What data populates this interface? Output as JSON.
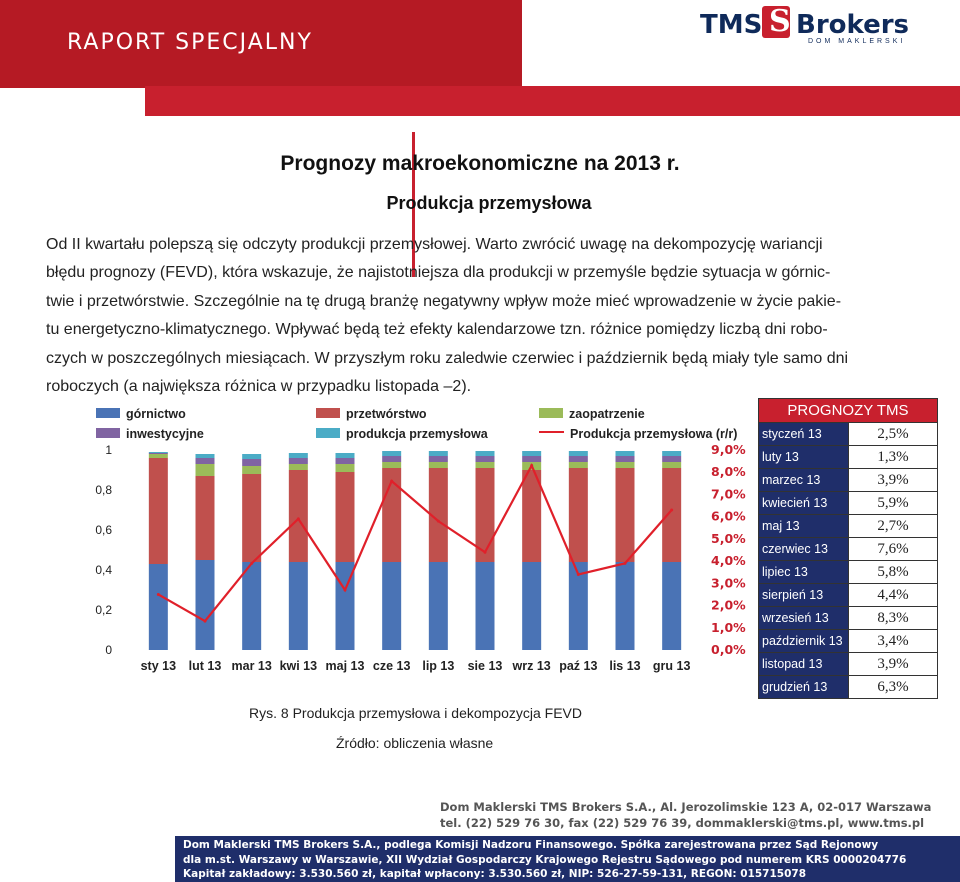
{
  "header": {
    "title": "RAPORT SPECJALNY",
    "logo_name": "TMS Brokers",
    "logo_tms": "TMS",
    "logo_brokers": "Brokers",
    "logo_sub": "DOM MAKLERSKI"
  },
  "article": {
    "heading": "Prognozy makroekonomiczne na 2013 r.",
    "subheading": "Produkcja przemysłowa",
    "paragraph_lines": [
      "Od II kwartału polepszą się odczyty produkcji przemysłowej. Warto zwrócić uwagę na dekompozycję wariancji",
      "błędu prognozy (FEVD), która wskazuje, że najistotniejsza dla produkcji w przemyśle będzie sytuacja w górnic-",
      "twie i przetwórstwie. Szczególnie na tę drugą branżę negatywny wpływ może mieć wprowadzenie w życie pakie-",
      "tu energetyczno-klimatycznego. Wpływać będą też efekty kalendarzowe tzn. różnice pomiędzy liczbą dni robo-",
      "czych w poszczególnych miesiącach. W przyszłym roku zaledwie czerwiec i październik będą miały tyle samo dni",
      "roboczych (a największa różnica w przypadku listopada –2)."
    ]
  },
  "chart_data": {
    "type": "bar",
    "stacked": true,
    "categories": [
      "sty 13",
      "lut 13",
      "mar 13",
      "kwi 13",
      "maj 13",
      "cze 13",
      "lip 13",
      "sie 13",
      "wrz 13",
      "paź 13",
      "lis 13",
      "gru 13"
    ],
    "ylim": [
      0,
      1
    ],
    "y_ticks": [
      "0",
      "0,2",
      "0,4",
      "0,6",
      "0,8",
      "1"
    ],
    "y2lim": [
      0,
      9
    ],
    "y2_ticks": [
      "0,0%",
      "1,0%",
      "2,0%",
      "3,0%",
      "4,0%",
      "5,0%",
      "6,0%",
      "7,0%",
      "8,0%",
      "9,0%"
    ],
    "legend_position": "top",
    "series": [
      {
        "name": "górnictwo",
        "color": "#4a73b5",
        "values": [
          0.43,
          0.45,
          0.44,
          0.44,
          0.44,
          0.44,
          0.44,
          0.44,
          0.44,
          0.44,
          0.44,
          0.44
        ]
      },
      {
        "name": "przetwórstwo",
        "color": "#c0504d",
        "values": [
          0.53,
          0.42,
          0.44,
          0.46,
          0.45,
          0.47,
          0.47,
          0.47,
          0.46,
          0.47,
          0.47,
          0.47
        ]
      },
      {
        "name": "zaopatrzenie",
        "color": "#9bbb59",
        "values": [
          0.02,
          0.06,
          0.04,
          0.03,
          0.04,
          0.03,
          0.03,
          0.03,
          0.04,
          0.03,
          0.03,
          0.03
        ]
      },
      {
        "name": "inwestycyjne",
        "color": "#8064a2",
        "values": [
          0.005,
          0.03,
          0.035,
          0.03,
          0.03,
          0.03,
          0.03,
          0.03,
          0.03,
          0.03,
          0.03,
          0.03
        ]
      },
      {
        "name": "produkcja przemysłowa",
        "color": "#4bacc6",
        "values": [
          0.005,
          0.02,
          0.025,
          0.025,
          0.025,
          0.025,
          0.025,
          0.025,
          0.025,
          0.025,
          0.025,
          0.025
        ]
      }
    ],
    "line": {
      "name": "Produkcja przemysłowa (r/r)",
      "color": "#e0202a",
      "axis": "right",
      "values": [
        2.5,
        1.3,
        3.9,
        5.9,
        2.7,
        7.6,
        5.8,
        4.4,
        8.3,
        3.4,
        3.9,
        6.3
      ]
    }
  },
  "forecast_table": {
    "title": "PROGNOZY TMS",
    "rows": [
      {
        "month": "styczeń 13",
        "value": "2,5%"
      },
      {
        "month": "luty 13",
        "value": "1,3%"
      },
      {
        "month": "marzec 13",
        "value": "3,9%"
      },
      {
        "month": "kwiecień 13",
        "value": "5,9%"
      },
      {
        "month": "maj 13",
        "value": "2,7%"
      },
      {
        "month": "czerwiec 13",
        "value": "7,6%"
      },
      {
        "month": "lipiec 13",
        "value": "5,8%"
      },
      {
        "month": "sierpień 13",
        "value": "4,4%"
      },
      {
        "month": "wrzesień 13",
        "value": "8,3%"
      },
      {
        "month": "październik 13",
        "value": "3,4%"
      },
      {
        "month": "listopad 13",
        "value": "3,9%"
      },
      {
        "month": "grudzień 13",
        "value": "6,3%"
      }
    ]
  },
  "figure": {
    "caption": "Rys. 8 Produkcja przemysłowa i dekompozycja FEVD",
    "source": "Źródło: obliczenia własne"
  },
  "footer": {
    "address_line1": "Dom Maklerski TMS Brokers S.A., Al. Jerozolimskie 123 A, 02-017 Warszawa",
    "address_line2": "tel. (22) 529 76 30, fax (22) 529 76 39, dommaklerski@tms.pl, www.tms.pl",
    "legal_lines": [
      "Dom Maklerski TMS Brokers S.A., podlega Komisji Nadzoru Finansowego. Spółka zarejestrowana przez Sąd Rejonowy",
      "dla m.st. Warszawy w Warszawie, XII Wydział Gospodarczy Krajowego Rejestru Sądowego pod numerem KRS 0000204776",
      "Kapitał zakładowy: 3.530.560 zł, kapitał wpłacony: 3.530.560 zł, NIP: 526-27-59-131, REGON: 015715078"
    ]
  }
}
